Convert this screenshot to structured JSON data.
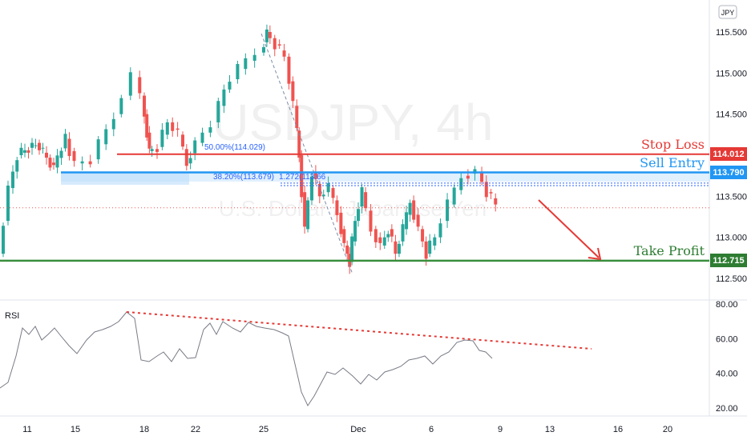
{
  "chart_data": [
    {
      "type": "candlestick",
      "watermark_symbol": "USDJPY, 4h",
      "watermark_desc": "U.S. Dollar / Japanese Yen",
      "currency_badge": "JPY",
      "y_ticks": [
        "115.500",
        "115.000",
        "114.500",
        "114.000",
        "113.500",
        "113.000",
        "112.500"
      ],
      "y_tick_values": [
        115.5,
        115.0,
        114.5,
        114.0,
        113.5,
        113.0,
        112.5
      ],
      "ylim": [
        112.33,
        115.78
      ],
      "x_ticks": [
        "11",
        "15",
        "18",
        "22",
        "25",
        "Dec",
        "6",
        "9",
        "13",
        "16",
        "20"
      ],
      "x_tick_days": [
        11,
        15,
        18,
        22,
        25,
        31,
        36,
        39,
        43,
        46,
        50
      ],
      "xlim_days": [
        8.6,
        51.1
      ],
      "candles_approx": [
        [
          9.0,
          112.85,
          112.95,
          112.75,
          112.8
        ],
        [
          9.2,
          112.8,
          113.0,
          112.78,
          112.98
        ],
        [
          9.4,
          112.98,
          113.25,
          112.95,
          113.2
        ],
        [
          9.6,
          113.2,
          113.55,
          113.15,
          113.5
        ],
        [
          9.8,
          113.5,
          113.72,
          113.4,
          113.68
        ],
        [
          10.0,
          113.68,
          113.9,
          113.6,
          113.85
        ],
        [
          10.2,
          113.85,
          114.05,
          113.75,
          114.0
        ],
        [
          10.4,
          114.0,
          114.1,
          113.85,
          113.9
        ],
        [
          10.6,
          113.9,
          114.05,
          113.8,
          114.02
        ],
        [
          10.8,
          114.02,
          114.12,
          113.92,
          113.98
        ],
        [
          11.0,
          113.98,
          114.1,
          113.9,
          114.05
        ],
        [
          11.2,
          114.05,
          114.12,
          113.95,
          114.0
        ],
        [
          11.4,
          114.0,
          114.1,
          113.9,
          113.96
        ],
        [
          11.6,
          113.96,
          114.2,
          113.92,
          114.15
        ],
        [
          11.8,
          114.15,
          114.3,
          114.05,
          114.2
        ],
        [
          12.0,
          114.2,
          114.28,
          114.02,
          114.06
        ],
        [
          12.2,
          114.06,
          114.15,
          113.95,
          114.0
        ],
        [
          12.4,
          114.0,
          114.08,
          113.88,
          113.95
        ],
        [
          12.6,
          113.95,
          114.05,
          113.82,
          113.9
        ],
        [
          12.8,
          113.9,
          114.0,
          113.78,
          113.86
        ],
        [
          13.0,
          113.86,
          113.96,
          113.8,
          113.92
        ],
        [
          13.2,
          113.92,
          114.0,
          113.84,
          113.88
        ],
        [
          13.4,
          113.88,
          113.98,
          113.8,
          113.84
        ],
        [
          13.6,
          113.84,
          114.02,
          113.8,
          113.98
        ],
        [
          13.8,
          113.98,
          114.12,
          113.9,
          114.05
        ]
      ],
      "close_price_last": 113.36,
      "levels": [
        {
          "name": "Stop Loss",
          "value": 114.012,
          "label": "114.012",
          "color": "#e53935"
        },
        {
          "name": "Sell Entry",
          "value": 113.79,
          "label": "113.790",
          "color": "#2196f3"
        },
        {
          "name": "Take Profit",
          "value": 112.715,
          "label": "112.715",
          "color": "#2e7d32"
        }
      ],
      "fib_labels": [
        "50.00%(114.029)",
        "38.20%(113.679)",
        "1.272(113.66"
      ],
      "colors": {
        "up": "#26a69a",
        "down": "#ef5350",
        "green_line": "#388e3c",
        "red_line": "#e53935",
        "blue_line": "#2196f3"
      }
    },
    {
      "type": "line",
      "title": "RSI",
      "y_ticks": [
        "80.00",
        "60.00",
        "40.00",
        "20.00"
      ],
      "y_tick_values": [
        80,
        60,
        40,
        20
      ],
      "ylim": [
        16,
        82
      ],
      "trendline_color": "#e53935"
    }
  ]
}
